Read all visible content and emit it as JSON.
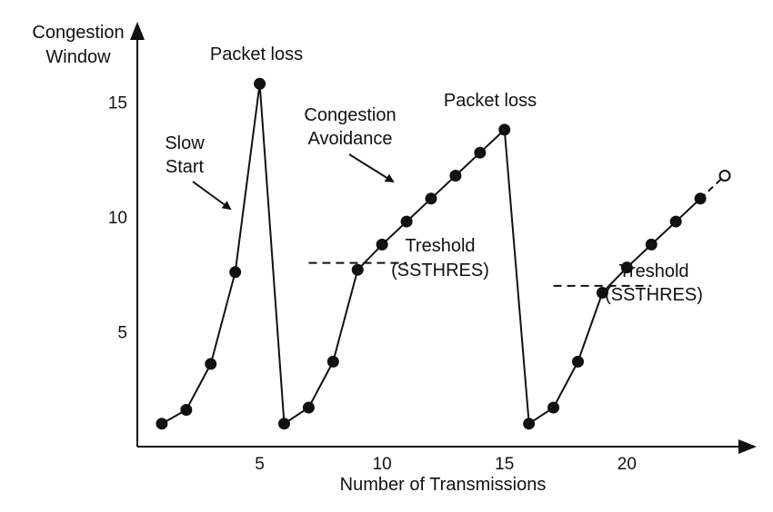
{
  "chart_data": {
    "type": "line",
    "ylabel_lines": [
      "Congestion",
      "Window"
    ],
    "xlabel": "Number of Transmissions",
    "x_ticks": [
      5,
      10,
      15,
      20
    ],
    "y_ticks": [
      5,
      10,
      15
    ],
    "xlim": [
      0,
      25.3
    ],
    "ylim": [
      0,
      18.5
    ],
    "series": [
      {
        "points": [
          [
            1,
            1
          ],
          [
            2,
            1.6
          ],
          [
            3,
            3.6
          ],
          [
            4,
            7.6
          ],
          [
            5,
            15.8
          ],
          [
            6,
            1
          ],
          [
            7,
            1.7
          ],
          [
            8,
            3.7
          ],
          [
            9,
            7.7
          ],
          [
            10,
            8.8
          ],
          [
            11,
            9.8
          ],
          [
            12,
            10.8
          ],
          [
            13,
            11.8
          ],
          [
            14,
            12.8
          ],
          [
            15,
            13.8
          ],
          [
            16,
            1
          ],
          [
            17,
            1.7
          ],
          [
            18,
            3.7
          ],
          [
            19,
            6.7
          ],
          [
            20,
            7.8
          ],
          [
            21,
            8.8
          ],
          [
            22,
            9.8
          ],
          [
            23,
            10.8
          ],
          [
            24,
            11.8
          ]
        ],
        "last_point_open": true,
        "last_segment_dashed": true
      }
    ],
    "thresholds": [
      {
        "y": 8.0,
        "x_start": 7.0,
        "x_end": 11.0
      },
      {
        "y": 7.0,
        "x_start": 17.0,
        "x_end": 21.0
      }
    ],
    "annotations": [
      {
        "id": "packet-loss-1",
        "lines": [
          "Packet loss"
        ]
      },
      {
        "id": "packet-loss-2",
        "lines": [
          "Packet loss"
        ]
      },
      {
        "id": "slow-start",
        "lines": [
          "Slow",
          "Start"
        ]
      },
      {
        "id": "congestion-avoidance",
        "lines": [
          "Congestion",
          "Avoidance"
        ]
      },
      {
        "id": "threshold-1",
        "lines": [
          "Treshold",
          "(SSTHRES)"
        ]
      },
      {
        "id": "threshold-2",
        "lines": [
          "Treshold",
          "(SSTHRES)"
        ]
      }
    ]
  }
}
